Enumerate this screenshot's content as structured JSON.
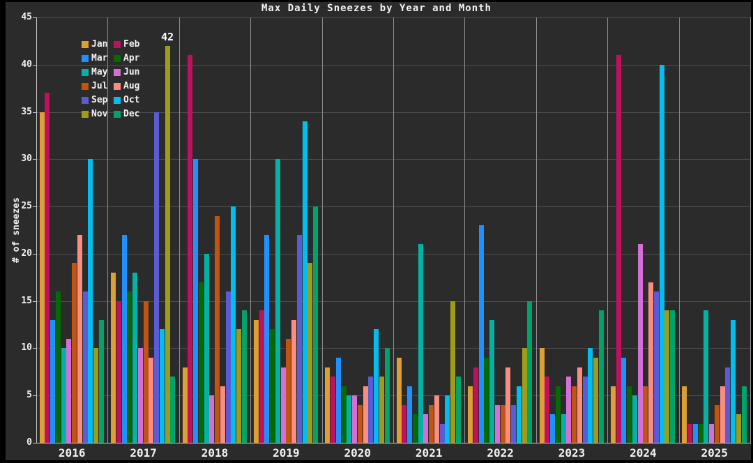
{
  "figure": {
    "background": "#2B2B2B",
    "outer_background": "#000000",
    "text_color": "#F2F2F2"
  },
  "chart_data": {
    "type": "bar",
    "title": "Max Daily Sneezes by Year and Month",
    "xlabel": "",
    "ylabel": "# of sneezes",
    "ylim": [
      0,
      45
    ],
    "yticks": [
      0,
      5,
      10,
      15,
      20,
      25,
      30,
      35,
      40,
      45
    ],
    "grid": true,
    "legend_position": "upper-left",
    "legend_columns": 2,
    "categories": [
      "2016",
      "2017",
      "2018",
      "2019",
      "2020",
      "2021",
      "2022",
      "2023",
      "2024",
      "2025"
    ],
    "series": [
      {
        "name": "Jan",
        "color": "#DFA033",
        "values": [
          35,
          18,
          8,
          13,
          8,
          9,
          6,
          10,
          6,
          6
        ]
      },
      {
        "name": "Feb",
        "color": "#C01060",
        "values": [
          37,
          15,
          41,
          14,
          7,
          4,
          8,
          7,
          41,
          2
        ]
      },
      {
        "name": "Mar",
        "color": "#1E90FF",
        "values": [
          13,
          22,
          30,
          22,
          9,
          6,
          23,
          3,
          9,
          2
        ]
      },
      {
        "name": "Apr",
        "color": "#046B04",
        "values": [
          16,
          16,
          17,
          12,
          6,
          3,
          9,
          6,
          6,
          2
        ]
      },
      {
        "name": "May",
        "color": "#00B3A4",
        "values": [
          10,
          18,
          20,
          30,
          5,
          21,
          13,
          3,
          5,
          14
        ]
      },
      {
        "name": "Jun",
        "color": "#D46FD8",
        "values": [
          11,
          10,
          5,
          8,
          5,
          3,
          4,
          7,
          21,
          2
        ]
      },
      {
        "name": "Jul",
        "color": "#BF5510",
        "values": [
          19,
          15,
          24,
          11,
          4,
          4,
          4,
          6,
          6,
          4
        ]
      },
      {
        "name": "Aug",
        "color": "#F88D80",
        "values": [
          22,
          9,
          6,
          13,
          6,
          5,
          8,
          8,
          17,
          6
        ]
      },
      {
        "name": "Sep",
        "color": "#5B5BD6",
        "values": [
          16,
          35,
          16,
          22,
          7,
          2,
          4,
          7,
          16,
          8
        ]
      },
      {
        "name": "Oct",
        "color": "#00BFF0",
        "values": [
          30,
          12,
          25,
          34,
          12,
          5,
          6,
          10,
          40,
          13
        ]
      },
      {
        "name": "Nov",
        "color": "#9E9C18",
        "values": [
          10,
          42,
          12,
          19,
          7,
          15,
          10,
          9,
          14,
          3
        ]
      },
      {
        "name": "Dec",
        "color": "#00A369",
        "values": [
          13,
          7,
          14,
          25,
          10,
          7,
          15,
          14,
          14,
          6
        ]
      }
    ],
    "annotation": {
      "text": "42",
      "year": "2017",
      "month": "Nov",
      "value": 42
    }
  }
}
